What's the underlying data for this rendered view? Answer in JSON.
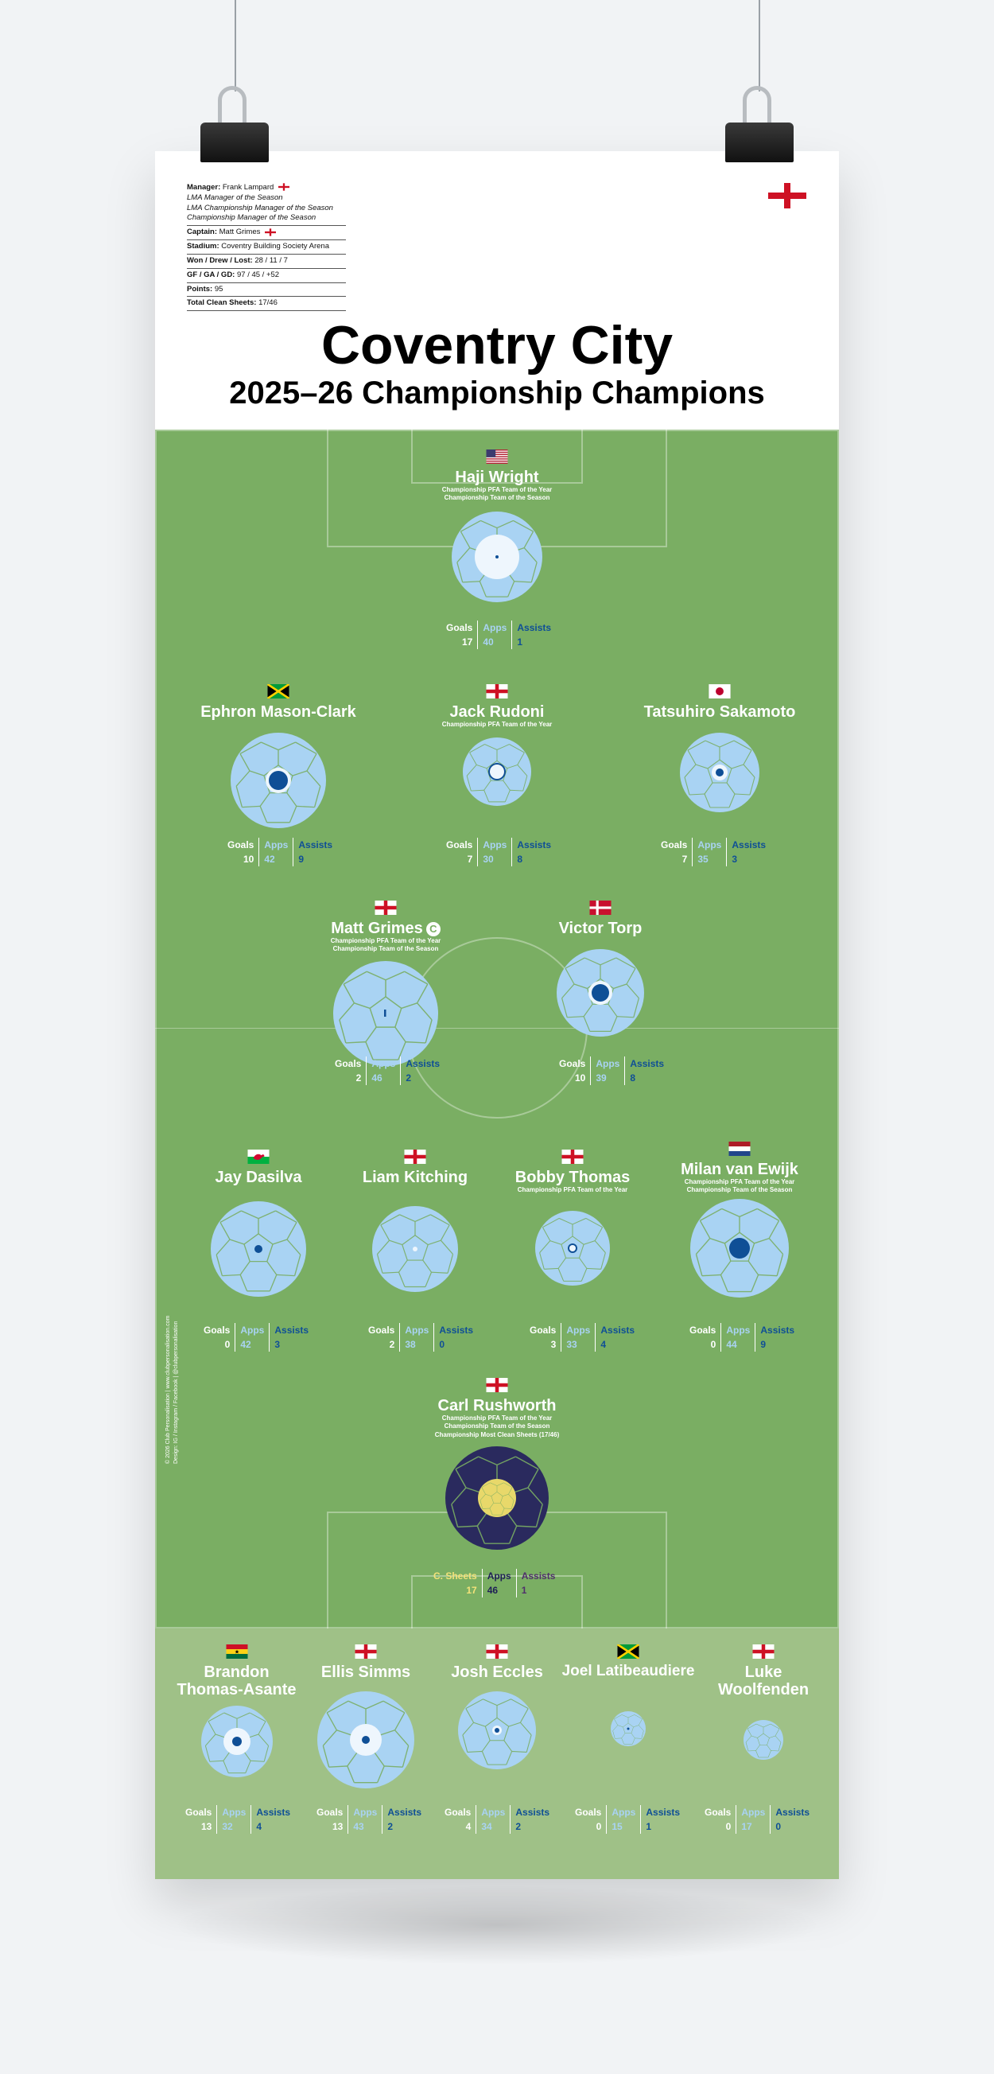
{
  "club": {
    "name": "Coventry City",
    "season_title": "2025–26 Championship Champions"
  },
  "info": {
    "manager_label": "Manager:",
    "manager": "Frank Lampard",
    "manager_awards": [
      "LMA Manager of the Season",
      "LMA Championship Manager of the Season",
      "Championship Manager of the Season"
    ],
    "captain_label": "Captain:",
    "captain": "Matt Grimes",
    "stadium_label": "Stadium:",
    "stadium": "Coventry Building Society Arena",
    "record_label": "Won / Drew / Lost:",
    "record": "28 / 11 / 7",
    "goals_label": "GF / GA / GD:",
    "goals": "97 / 45 / +52",
    "points_label": "Points:",
    "points": "95",
    "clean_sheets_label": "Total Clean Sheets:",
    "clean_sheets": "17/46"
  },
  "labels": {
    "goals": "Goals",
    "apps": "Apps",
    "assists": "Assists",
    "clean_sheets": "C. Sheets",
    "captain_mark": "C"
  },
  "credits": {
    "line1": "© 2026 Club Personalisation  |  www.clubpersonalisation.com",
    "line2": "Design: IG / Instagram / Facebook  |  @clubpersonalisation"
  },
  "colors": {
    "pitch": "#7aae63",
    "subs_area": "#9fc187",
    "ball": "#a9d3f3",
    "ball_seam": "#7aae63",
    "dot": "#0f4f96",
    "gk_ball": "#2a2a5e",
    "gk_dot": "#e8d86a"
  },
  "players": {
    "wright": {
      "name": "Haji Wright",
      "flag": "usa-flag",
      "awards": [
        "Championship PFA Team of the Year",
        "Championship Team of the Season"
      ],
      "goals": "17",
      "apps": "40",
      "assists": "1"
    },
    "mason_clark": {
      "name": "Ephron Mason-Clark",
      "flag": "jamaica-flag",
      "awards": [],
      "goals": "10",
      "apps": "42",
      "assists": "9"
    },
    "rudoni": {
      "name": "Jack Rudoni",
      "flag": "england-flag",
      "awards": [
        "Championship PFA Team of the Year"
      ],
      "goals": "7",
      "apps": "30",
      "assists": "8"
    },
    "sakamoto": {
      "name": "Tatsuhiro Sakamoto",
      "flag": "japan-flag",
      "awards": [],
      "goals": "7",
      "apps": "35",
      "assists": "3"
    },
    "grimes": {
      "name": "Matt Grimes",
      "flag": "england-flag",
      "awards": [
        "Championship PFA Team of the Year",
        "Championship Team of the Season"
      ],
      "goals": "2",
      "apps": "46",
      "assists": "2"
    },
    "torp": {
      "name": "Victor Torp",
      "flag": "denmark-flag",
      "awards": [],
      "goals": "10",
      "apps": "39",
      "assists": "8"
    },
    "dasilva": {
      "name": "Jay Dasilva",
      "flag": "wales-flag",
      "awards": [],
      "goals": "0",
      "apps": "42",
      "assists": "3"
    },
    "kitching": {
      "name": "Liam Kitching",
      "flag": "england-flag",
      "awards": [],
      "goals": "2",
      "apps": "38",
      "assists": "0"
    },
    "thomas": {
      "name": "Bobby Thomas",
      "flag": "england-flag",
      "awards": [
        "Championship PFA Team of the Year"
      ],
      "goals": "3",
      "apps": "33",
      "assists": "4"
    },
    "van_ewijk": {
      "name": "Milan van Ewijk",
      "flag": "netherlands-flag",
      "awards": [
        "Championship PFA Team of the Year",
        "Championship Team of the Season"
      ],
      "goals": "0",
      "apps": "44",
      "assists": "9"
    },
    "rushworth": {
      "name": "Carl Rushworth",
      "flag": "england-flag",
      "awards": [
        "Championship PFA Team of the Year",
        "Championship Team of the Season",
        "Championship Most Clean Sheets (17/46)"
      ],
      "clean_sheets": "17",
      "apps": "46",
      "assists": "1"
    },
    "thomas_asante": {
      "name_line1": "Brandon",
      "name_line2": "Thomas-Asante",
      "flag": "ghana-flag",
      "goals": "13",
      "apps": "32",
      "assists": "4"
    },
    "simms": {
      "name": "Ellis Simms",
      "flag": "england-flag",
      "goals": "13",
      "apps": "43",
      "assists": "2"
    },
    "eccles": {
      "name": "Josh Eccles",
      "flag": "england-flag",
      "goals": "4",
      "apps": "34",
      "assists": "2"
    },
    "latibeaudiere": {
      "name": "Joel Latibeaudiere",
      "flag": "jamaica-flag",
      "goals": "0",
      "apps": "15",
      "assists": "1"
    },
    "woolfenden": {
      "name_line1": "Luke",
      "name_line2": "Woolfenden",
      "flag": "england-flag",
      "goals": "0",
      "apps": "17",
      "assists": "0"
    }
  }
}
